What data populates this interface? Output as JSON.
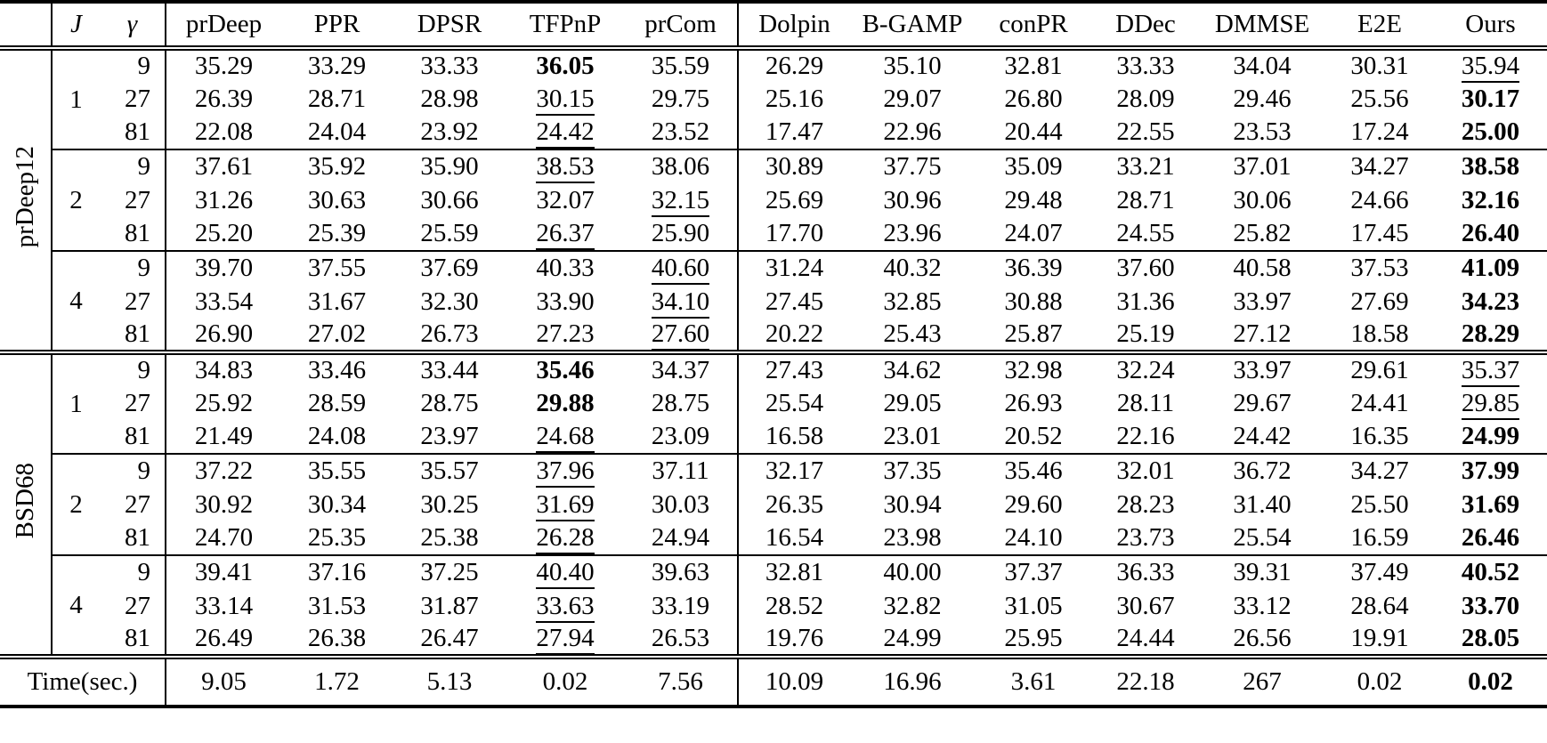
{
  "colors": {
    "text": "#000000",
    "background": "#ffffff"
  },
  "table": {
    "header": {
      "corner": "",
      "j": "J",
      "gamma": "γ",
      "methods": [
        "prDeep",
        "PPR",
        "DPSR",
        "TFPnP",
        "prCom",
        "Dolpin",
        "B-GAMP",
        "conPR",
        "DDec",
        "DMMSE",
        "E2E",
        "Ours"
      ]
    },
    "vline_after_value_index": 4,
    "datasets": [
      {
        "name": "prDeep12",
        "blocks": [
          {
            "j": "1",
            "rows": [
              {
                "gamma": "9",
                "values": [
                  "35.29",
                  "33.29",
                  "33.33",
                  "36.05",
                  "35.59",
                  "26.29",
                  "35.10",
                  "32.81",
                  "33.33",
                  "34.04",
                  "30.31",
                  "35.94"
                ],
                "bold": [
                  3
                ],
                "underline": [
                  11
                ]
              },
              {
                "gamma": "27",
                "values": [
                  "26.39",
                  "28.71",
                  "28.98",
                  "30.15",
                  "29.75",
                  "25.16",
                  "29.07",
                  "26.80",
                  "28.09",
                  "29.46",
                  "25.56",
                  "30.17"
                ],
                "bold": [
                  11
                ],
                "underline": [
                  3
                ]
              },
              {
                "gamma": "81",
                "values": [
                  "22.08",
                  "24.04",
                  "23.92",
                  "24.42",
                  "23.52",
                  "17.47",
                  "22.96",
                  "20.44",
                  "22.55",
                  "23.53",
                  "17.24",
                  "25.00"
                ],
                "bold": [
                  11
                ],
                "underline": [
                  3
                ]
              }
            ]
          },
          {
            "j": "2",
            "rows": [
              {
                "gamma": "9",
                "values": [
                  "37.61",
                  "35.92",
                  "35.90",
                  "38.53",
                  "38.06",
                  "30.89",
                  "37.75",
                  "35.09",
                  "33.21",
                  "37.01",
                  "34.27",
                  "38.58"
                ],
                "bold": [
                  11
                ],
                "underline": [
                  3
                ]
              },
              {
                "gamma": "27",
                "values": [
                  "31.26",
                  "30.63",
                  "30.66",
                  "32.07",
                  "32.15",
                  "25.69",
                  "30.96",
                  "29.48",
                  "28.71",
                  "30.06",
                  "24.66",
                  "32.16"
                ],
                "bold": [
                  11
                ],
                "underline": [
                  4
                ]
              },
              {
                "gamma": "81",
                "values": [
                  "25.20",
                  "25.39",
                  "25.59",
                  "26.37",
                  "25.90",
                  "17.70",
                  "23.96",
                  "24.07",
                  "24.55",
                  "25.82",
                  "17.45",
                  "26.40"
                ],
                "bold": [
                  11
                ],
                "underline": [
                  3
                ]
              }
            ]
          },
          {
            "j": "4",
            "rows": [
              {
                "gamma": "9",
                "values": [
                  "39.70",
                  "37.55",
                  "37.69",
                  "40.33",
                  "40.60",
                  "31.24",
                  "40.32",
                  "36.39",
                  "37.60",
                  "40.58",
                  "37.53",
                  "41.09"
                ],
                "bold": [
                  11
                ],
                "underline": [
                  4
                ]
              },
              {
                "gamma": "27",
                "values": [
                  "33.54",
                  "31.67",
                  "32.30",
                  "33.90",
                  "34.10",
                  "27.45",
                  "32.85",
                  "30.88",
                  "31.36",
                  "33.97",
                  "27.69",
                  "34.23"
                ],
                "bold": [
                  11
                ],
                "underline": [
                  4
                ]
              },
              {
                "gamma": "81",
                "values": [
                  "26.90",
                  "27.02",
                  "26.73",
                  "27.23",
                  "27.60",
                  "20.22",
                  "25.43",
                  "25.87",
                  "25.19",
                  "27.12",
                  "18.58",
                  "28.29"
                ],
                "bold": [
                  11
                ],
                "underline": [
                  4
                ]
              }
            ]
          }
        ]
      },
      {
        "name": "BSD68",
        "blocks": [
          {
            "j": "1",
            "rows": [
              {
                "gamma": "9",
                "values": [
                  "34.83",
                  "33.46",
                  "33.44",
                  "35.46",
                  "34.37",
                  "27.43",
                  "34.62",
                  "32.98",
                  "32.24",
                  "33.97",
                  "29.61",
                  "35.37"
                ],
                "bold": [
                  3
                ],
                "underline": [
                  11
                ]
              },
              {
                "gamma": "27",
                "values": [
                  "25.92",
                  "28.59",
                  "28.75",
                  "29.88",
                  "28.75",
                  "25.54",
                  "29.05",
                  "26.93",
                  "28.11",
                  "29.67",
                  "24.41",
                  "29.85"
                ],
                "bold": [
                  3
                ],
                "underline": [
                  11
                ]
              },
              {
                "gamma": "81",
                "values": [
                  "21.49",
                  "24.08",
                  "23.97",
                  "24.68",
                  "23.09",
                  "16.58",
                  "23.01",
                  "20.52",
                  "22.16",
                  "24.42",
                  "16.35",
                  "24.99"
                ],
                "bold": [
                  11
                ],
                "underline": [
                  3
                ]
              }
            ]
          },
          {
            "j": "2",
            "rows": [
              {
                "gamma": "9",
                "values": [
                  "37.22",
                  "35.55",
                  "35.57",
                  "37.96",
                  "37.11",
                  "32.17",
                  "37.35",
                  "35.46",
                  "32.01",
                  "36.72",
                  "34.27",
                  "37.99"
                ],
                "bold": [
                  11
                ],
                "underline": [
                  3
                ]
              },
              {
                "gamma": "27",
                "values": [
                  "30.92",
                  "30.34",
                  "30.25",
                  "31.69",
                  "30.03",
                  "26.35",
                  "30.94",
                  "29.60",
                  "28.23",
                  "31.40",
                  "25.50",
                  "31.69"
                ],
                "bold": [
                  11
                ],
                "underline": [
                  3
                ]
              },
              {
                "gamma": "81",
                "values": [
                  "24.70",
                  "25.35",
                  "25.38",
                  "26.28",
                  "24.94",
                  "16.54",
                  "23.98",
                  "24.10",
                  "23.73",
                  "25.54",
                  "16.59",
                  "26.46"
                ],
                "bold": [
                  11
                ],
                "underline": [
                  3
                ]
              }
            ]
          },
          {
            "j": "4",
            "rows": [
              {
                "gamma": "9",
                "values": [
                  "39.41",
                  "37.16",
                  "37.25",
                  "40.40",
                  "39.63",
                  "32.81",
                  "40.00",
                  "37.37",
                  "36.33",
                  "39.31",
                  "37.49",
                  "40.52"
                ],
                "bold": [
                  11
                ],
                "underline": [
                  3
                ]
              },
              {
                "gamma": "27",
                "values": [
                  "33.14",
                  "31.53",
                  "31.87",
                  "33.63",
                  "33.19",
                  "28.52",
                  "32.82",
                  "31.05",
                  "30.67",
                  "33.12",
                  "28.64",
                  "33.70"
                ],
                "bold": [
                  11
                ],
                "underline": [
                  3
                ]
              },
              {
                "gamma": "81",
                "values": [
                  "26.49",
                  "26.38",
                  "26.47",
                  "27.94",
                  "26.53",
                  "19.76",
                  "24.99",
                  "25.95",
                  "24.44",
                  "26.56",
                  "19.91",
                  "28.05"
                ],
                "bold": [
                  11
                ],
                "underline": [
                  3
                ]
              }
            ]
          }
        ]
      }
    ],
    "time_row": {
      "label": "Time(sec.)",
      "values": [
        "9.05",
        "1.72",
        "5.13",
        "0.02",
        "7.56",
        "10.09",
        "16.96",
        "3.61",
        "22.18",
        "267",
        "0.02",
        "0.02"
      ],
      "bold": [
        11
      ]
    }
  }
}
